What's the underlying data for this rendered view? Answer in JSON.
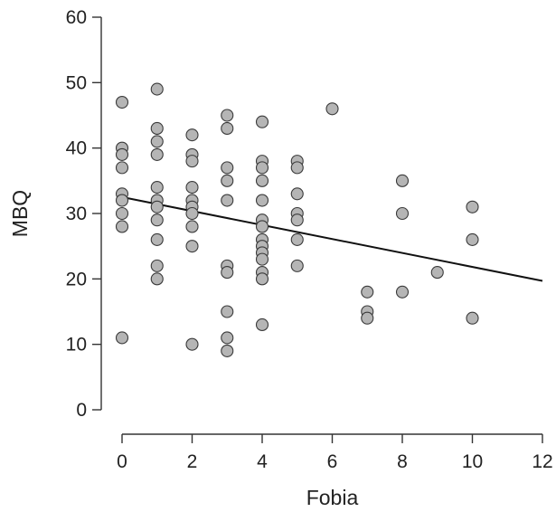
{
  "chart_data": {
    "type": "scatter",
    "title": "",
    "xlabel": "Fobia",
    "ylabel": "MBQ",
    "xlim": [
      0,
      12
    ],
    "ylim": [
      0,
      60
    ],
    "x_ticks": [
      0,
      2,
      4,
      6,
      8,
      10,
      12
    ],
    "y_ticks": [
      0,
      10,
      20,
      30,
      40,
      50,
      60
    ],
    "grid": false,
    "legend": "none",
    "point_color": "#b5b5b5",
    "point_edge_color": "#3a3a3a",
    "line_color": "#111111",
    "points": [
      {
        "x": 0,
        "y": 47
      },
      {
        "x": 0,
        "y": 40
      },
      {
        "x": 0,
        "y": 39
      },
      {
        "x": 0,
        "y": 37
      },
      {
        "x": 0,
        "y": 33
      },
      {
        "x": 0,
        "y": 32
      },
      {
        "x": 0,
        "y": 30
      },
      {
        "x": 0,
        "y": 28
      },
      {
        "x": 0,
        "y": 11
      },
      {
        "x": 1,
        "y": 49
      },
      {
        "x": 1,
        "y": 43
      },
      {
        "x": 1,
        "y": 41
      },
      {
        "x": 1,
        "y": 39
      },
      {
        "x": 1,
        "y": 34
      },
      {
        "x": 1,
        "y": 32
      },
      {
        "x": 1,
        "y": 31
      },
      {
        "x": 1,
        "y": 29
      },
      {
        "x": 1,
        "y": 26
      },
      {
        "x": 1,
        "y": 22
      },
      {
        "x": 1,
        "y": 20
      },
      {
        "x": 2,
        "y": 42
      },
      {
        "x": 2,
        "y": 39
      },
      {
        "x": 2,
        "y": 38
      },
      {
        "x": 2,
        "y": 34
      },
      {
        "x": 2,
        "y": 32
      },
      {
        "x": 2,
        "y": 31
      },
      {
        "x": 2,
        "y": 30
      },
      {
        "x": 2,
        "y": 28
      },
      {
        "x": 2,
        "y": 25
      },
      {
        "x": 2,
        "y": 10
      },
      {
        "x": 3,
        "y": 45
      },
      {
        "x": 3,
        "y": 43
      },
      {
        "x": 3,
        "y": 37
      },
      {
        "x": 3,
        "y": 35
      },
      {
        "x": 3,
        "y": 32
      },
      {
        "x": 3,
        "y": 22
      },
      {
        "x": 3,
        "y": 21
      },
      {
        "x": 3,
        "y": 15
      },
      {
        "x": 3,
        "y": 11
      },
      {
        "x": 3,
        "y": 9
      },
      {
        "x": 4,
        "y": 44
      },
      {
        "x": 4,
        "y": 38
      },
      {
        "x": 4,
        "y": 37
      },
      {
        "x": 4,
        "y": 35
      },
      {
        "x": 4,
        "y": 32
      },
      {
        "x": 4,
        "y": 29
      },
      {
        "x": 4,
        "y": 28
      },
      {
        "x": 4,
        "y": 26
      },
      {
        "x": 4,
        "y": 25
      },
      {
        "x": 4,
        "y": 24
      },
      {
        "x": 4,
        "y": 23
      },
      {
        "x": 4,
        "y": 21
      },
      {
        "x": 4,
        "y": 20
      },
      {
        "x": 4,
        "y": 13
      },
      {
        "x": 5,
        "y": 38
      },
      {
        "x": 5,
        "y": 37
      },
      {
        "x": 5,
        "y": 33
      },
      {
        "x": 5,
        "y": 30
      },
      {
        "x": 5,
        "y": 29
      },
      {
        "x": 5,
        "y": 26
      },
      {
        "x": 5,
        "y": 22
      },
      {
        "x": 6,
        "y": 46
      },
      {
        "x": 7,
        "y": 18
      },
      {
        "x": 7,
        "y": 15
      },
      {
        "x": 7,
        "y": 14
      },
      {
        "x": 8,
        "y": 35
      },
      {
        "x": 8,
        "y": 30
      },
      {
        "x": 8,
        "y": 18
      },
      {
        "x": 9,
        "y": 21
      },
      {
        "x": 10,
        "y": 31
      },
      {
        "x": 10,
        "y": 26
      },
      {
        "x": 10,
        "y": 14
      }
    ],
    "regression_line": {
      "x": [
        0,
        12
      ],
      "y": [
        32.5,
        19.7
      ]
    }
  }
}
